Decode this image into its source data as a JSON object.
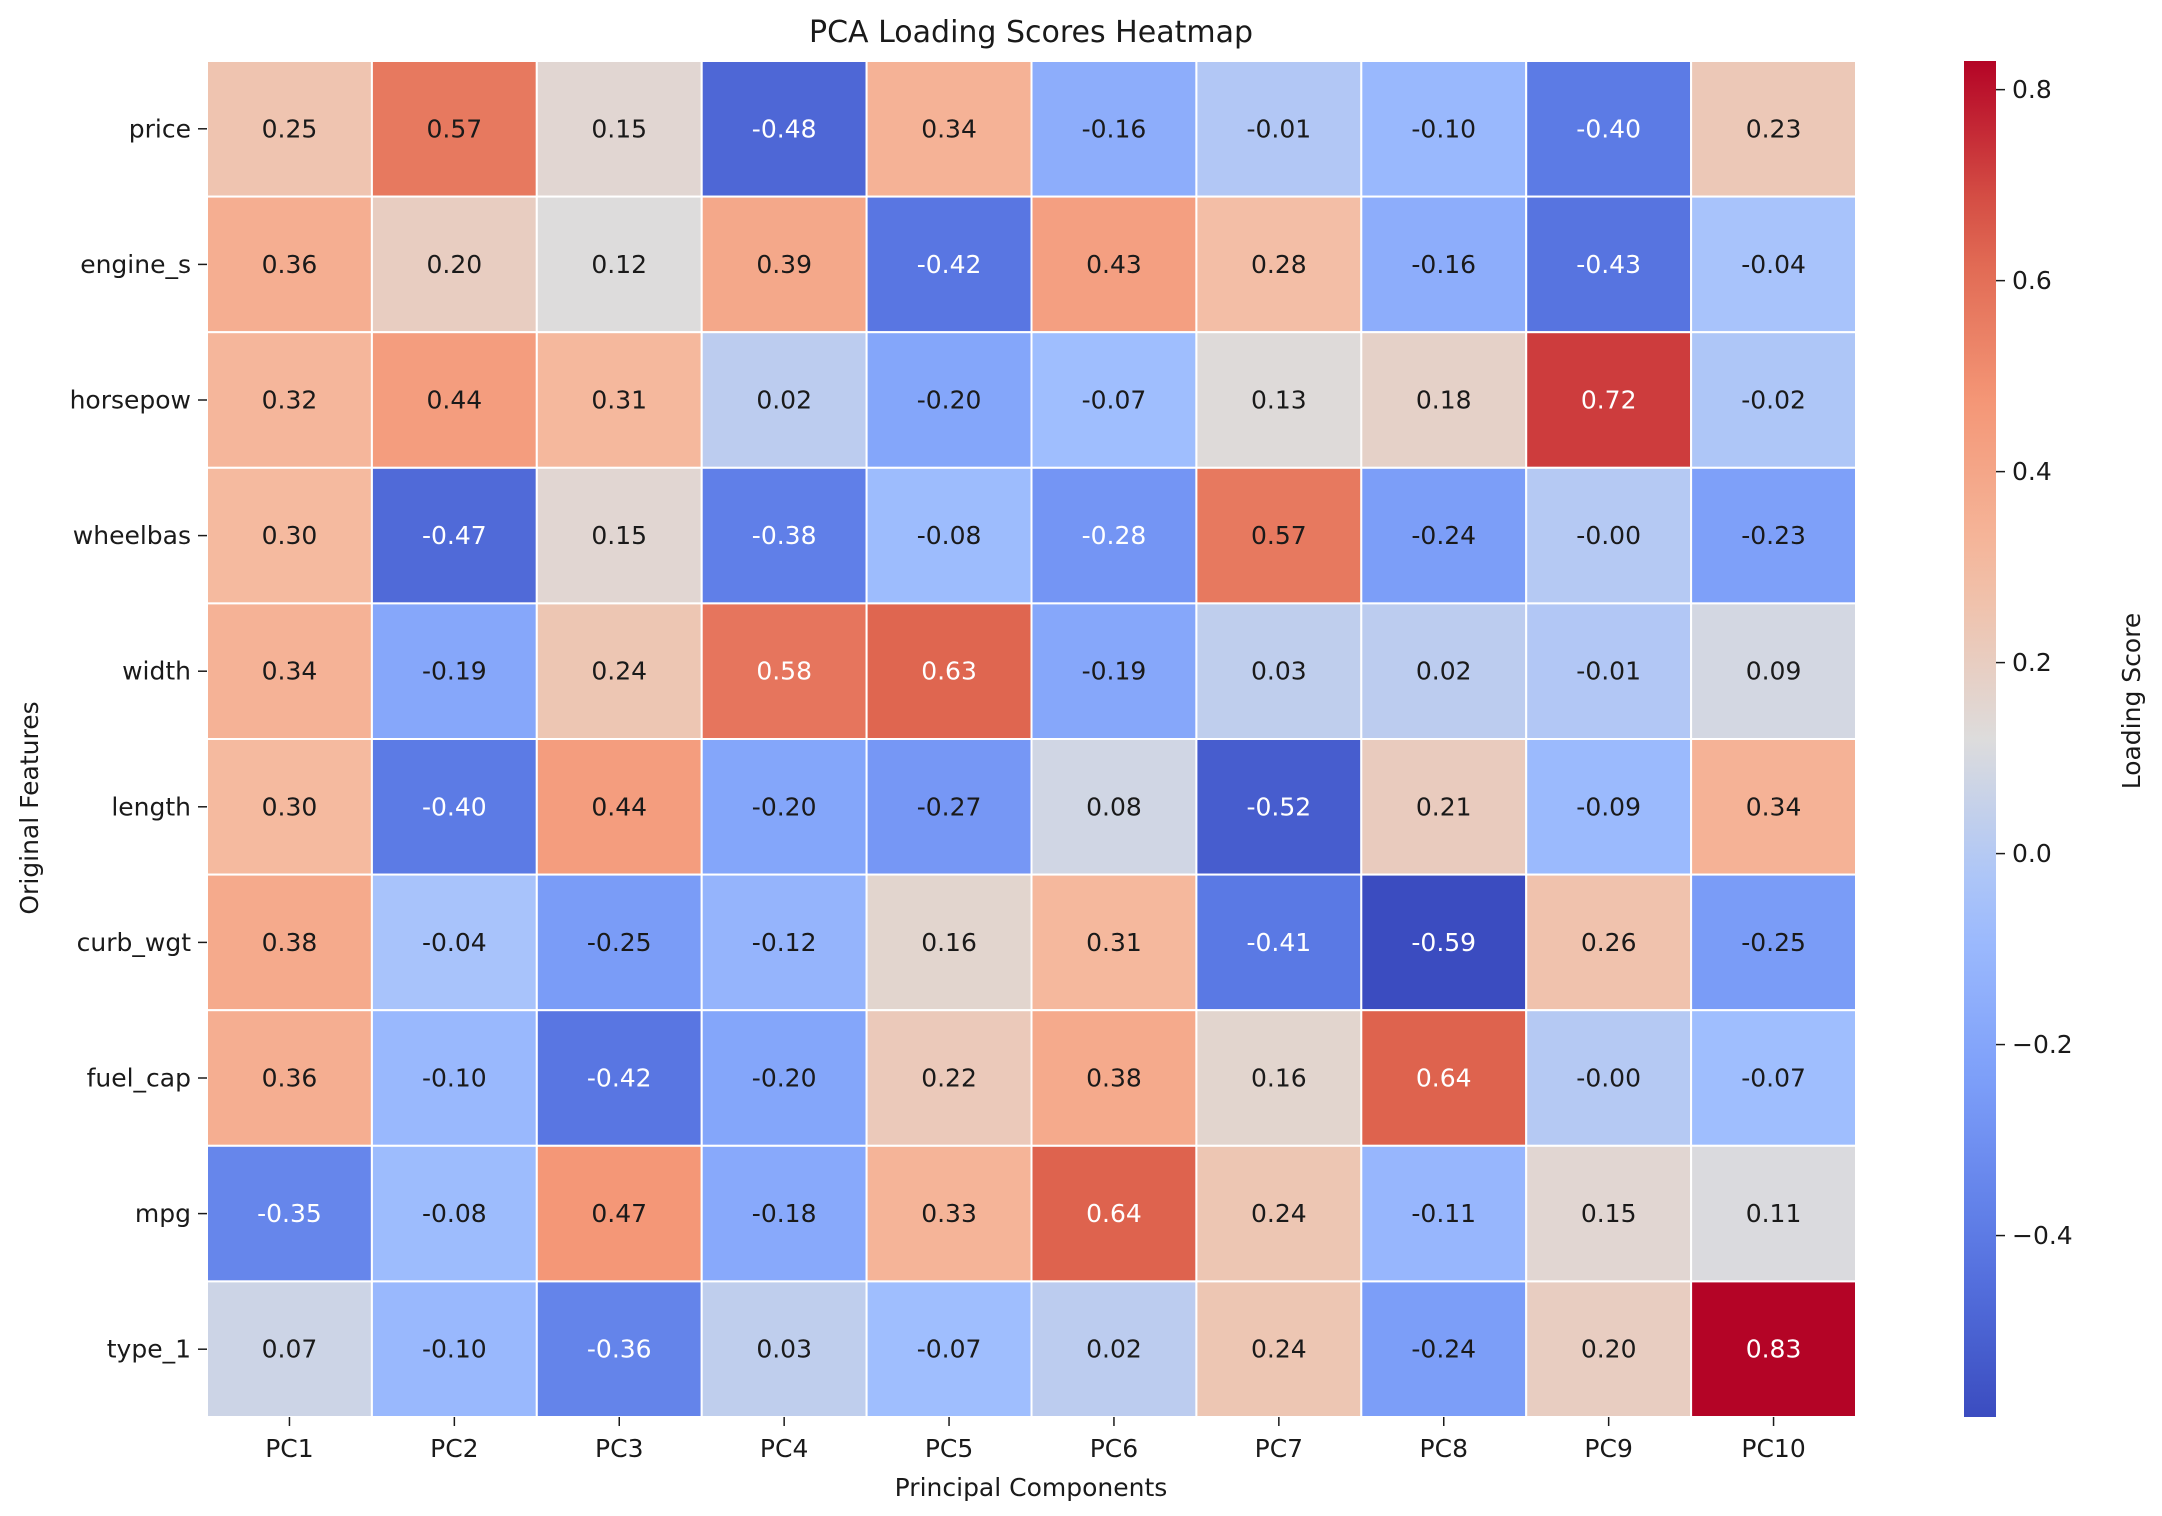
{
  "chart_data": {
    "type": "heatmap",
    "title": "PCA Loading Scores Heatmap",
    "xlabel": "Principal Components",
    "ylabel": "Original Features",
    "colorbar_label": "Loading Score",
    "colormap": "coolwarm",
    "vmin": -0.59,
    "vmax": 0.83,
    "colorbar_ticks": [
      0.8,
      0.6,
      0.4,
      0.2,
      0.0,
      -0.2,
      -0.4
    ],
    "colorbar_tick_labels": [
      "0.8",
      "0.6",
      "0.4",
      "0.2",
      "0.0",
      "−0.2",
      "−0.4"
    ],
    "columns": [
      "PC1",
      "PC2",
      "PC3",
      "PC4",
      "PC5",
      "PC6",
      "PC7",
      "PC8",
      "PC9",
      "PC10"
    ],
    "rows": [
      "price",
      "engine_s",
      "horsepow",
      "wheelbas",
      "width",
      "length",
      "curb_wgt",
      "fuel_cap",
      "mpg",
      "type_1"
    ],
    "values": [
      [
        0.25,
        0.57,
        0.15,
        -0.48,
        0.34,
        -0.16,
        -0.01,
        -0.1,
        -0.4,
        0.23
      ],
      [
        0.36,
        0.2,
        0.12,
        0.39,
        -0.42,
        0.43,
        0.28,
        -0.16,
        -0.43,
        -0.04
      ],
      [
        0.32,
        0.44,
        0.31,
        0.02,
        -0.2,
        -0.07,
        0.13,
        0.18,
        0.72,
        -0.02
      ],
      [
        0.3,
        -0.47,
        0.15,
        -0.38,
        -0.08,
        -0.28,
        0.57,
        -0.24,
        -0.0,
        -0.23
      ],
      [
        0.34,
        -0.19,
        0.24,
        0.58,
        0.63,
        -0.19,
        0.03,
        0.02,
        -0.01,
        0.09
      ],
      [
        0.3,
        -0.4,
        0.44,
        -0.2,
        -0.27,
        0.08,
        -0.52,
        0.21,
        -0.09,
        0.34
      ],
      [
        0.38,
        -0.04,
        -0.25,
        -0.12,
        0.16,
        0.31,
        -0.41,
        -0.59,
        0.26,
        -0.25
      ],
      [
        0.36,
        -0.1,
        -0.42,
        -0.2,
        0.22,
        0.38,
        0.16,
        0.64,
        -0.0,
        -0.07
      ],
      [
        -0.35,
        -0.08,
        0.47,
        -0.18,
        0.33,
        0.64,
        0.24,
        -0.11,
        0.15,
        0.11
      ],
      [
        0.07,
        -0.1,
        -0.36,
        0.03,
        -0.07,
        0.02,
        0.24,
        -0.24,
        0.2,
        0.83
      ]
    ],
    "value_labels": [
      [
        "0.25",
        "0.57",
        "0.15",
        "-0.48",
        "0.34",
        "-0.16",
        "-0.01",
        "-0.10",
        "-0.40",
        "0.23"
      ],
      [
        "0.36",
        "0.20",
        "0.12",
        "0.39",
        "-0.42",
        "0.43",
        "0.28",
        "-0.16",
        "-0.43",
        "-0.04"
      ],
      [
        "0.32",
        "0.44",
        "0.31",
        "0.02",
        "-0.20",
        "-0.07",
        "0.13",
        "0.18",
        "0.72",
        "-0.02"
      ],
      [
        "0.30",
        "-0.47",
        "0.15",
        "-0.38",
        "-0.08",
        "-0.28",
        "0.57",
        "-0.24",
        "-0.00",
        "-0.23"
      ],
      [
        "0.34",
        "-0.19",
        "0.24",
        "0.58",
        "0.63",
        "-0.19",
        "0.03",
        "0.02",
        "-0.01",
        "0.09"
      ],
      [
        "0.30",
        "-0.40",
        "0.44",
        "-0.20",
        "-0.27",
        "0.08",
        "-0.52",
        "0.21",
        "-0.09",
        "0.34"
      ],
      [
        "0.38",
        "-0.04",
        "-0.25",
        "-0.12",
        "0.16",
        "0.31",
        "-0.41",
        "-0.59",
        "0.26",
        "-0.25"
      ],
      [
        "0.36",
        "-0.10",
        "-0.42",
        "-0.20",
        "0.22",
        "0.38",
        "0.16",
        "0.64",
        "-0.00",
        "-0.07"
      ],
      [
        "-0.35",
        "-0.08",
        "0.47",
        "-0.18",
        "0.33",
        "0.64",
        "0.24",
        "-0.11",
        "0.15",
        "0.11"
      ],
      [
        "0.07",
        "-0.10",
        "-0.36",
        "0.03",
        "-0.07",
        "0.02",
        "0.24",
        "-0.24",
        "0.20",
        "0.83"
      ]
    ]
  }
}
